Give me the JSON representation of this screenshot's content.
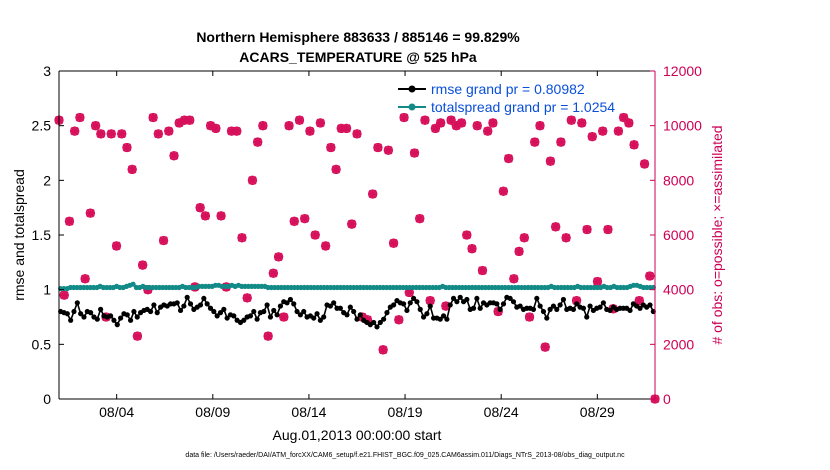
{
  "chart_data": {
    "type": "line",
    "title_line1": "Northern Hemisphere 883633 / 885146 = 99.829%",
    "title_line2": "ACARS_TEMPERATURE @ 525 hPa",
    "xlabel": "Aug.01,2013 00:00:00 start",
    "ylabel_left": "rmse and totalspread",
    "ylabel_right": "# of obs: o=possible; ×=assimilated",
    "footnote": "data file: /Users/raeder/DAI/ATM_forcXX/CAM6_setup/f.e21.FHIST_BGC.f09_025.CAM6assim.011/Diags_NTrS_2013-08/obs_diag_output.nc",
    "xlim": [
      0,
      31
    ],
    "ylim_left": [
      0,
      3
    ],
    "ylim_right": [
      0,
      12000
    ],
    "x_ticks": [
      3,
      8,
      13,
      18,
      23,
      28
    ],
    "x_tick_labels": [
      "08/04",
      "08/09",
      "08/14",
      "08/19",
      "08/24",
      "08/29"
    ],
    "y_ticks_left": [
      0,
      0.5,
      1,
      1.5,
      2,
      2.5,
      3
    ],
    "y_tick_labels_left": [
      "0",
      "0.5",
      "1",
      "1.5",
      "2",
      "2.5",
      "3"
    ],
    "y_ticks_right": [
      0,
      2000,
      4000,
      6000,
      8000,
      10000,
      12000
    ],
    "y_tick_labels_right": [
      "0",
      "2000",
      "4000",
      "6000",
      "8000",
      "10000",
      "12000"
    ],
    "colors": {
      "rmse": "#000000",
      "spread": "#128a87",
      "obs": "#d6105a",
      "legend_text": "#0a4fd8",
      "right_axis": "#cc0055"
    },
    "legend": {
      "placement": "top-right",
      "entries": [
        "rmse grand pr = 0.80982",
        "totalspread grand pr = 1.0254"
      ]
    },
    "series": [
      {
        "name": "rmse",
        "values": [
          0.8,
          0.79,
          0.78,
          0.72,
          0.8,
          0.88,
          0.78,
          0.75,
          0.8,
          0.79,
          0.75,
          0.73,
          0.82,
          0.76,
          0.75,
          0.76,
          0.72,
          0.68,
          0.74,
          0.78,
          0.77,
          0.72,
          0.8,
          0.75,
          0.79,
          0.81,
          0.82,
          0.8,
          0.86,
          0.79,
          0.84,
          0.86,
          0.85,
          0.87,
          0.87,
          0.88,
          0.81,
          0.85,
          0.93,
          0.87,
          0.82,
          0.84,
          0.86,
          0.92,
          0.87,
          0.83,
          0.8,
          0.76,
          0.79,
          0.82,
          0.74,
          0.77,
          0.76,
          0.72,
          0.7,
          0.72,
          0.75,
          0.76,
          0.8,
          0.73,
          0.79,
          0.8,
          0.86,
          0.75,
          0.81,
          0.77,
          0.85,
          0.89,
          0.88,
          0.91,
          0.87,
          0.8,
          0.77,
          0.8,
          0.75,
          0.76,
          0.74,
          0.78,
          0.72,
          0.75,
          0.86,
          0.85,
          0.88,
          0.83,
          0.83,
          0.79,
          0.77,
          0.84,
          0.8,
          0.73,
          0.77,
          0.72,
          0.7,
          0.68,
          0.7,
          0.66,
          0.7,
          0.73,
          0.79,
          0.84,
          0.86,
          0.9,
          0.88,
          0.87,
          0.81,
          0.88,
          0.92,
          0.89,
          0.82,
          0.75,
          0.78,
          0.85,
          0.74,
          0.74,
          0.73,
          0.76,
          0.73,
          0.86,
          0.92,
          0.89,
          0.93,
          0.89,
          0.91,
          0.82,
          0.83,
          0.92,
          0.83,
          0.88,
          0.86,
          0.88,
          0.88,
          0.87,
          0.82,
          0.87,
          0.93,
          0.92,
          0.89,
          0.84,
          0.85,
          0.82,
          0.83,
          0.83,
          0.82,
          0.92,
          0.85,
          0.8,
          0.74,
          0.82,
          0.85,
          0.82,
          0.86,
          0.91,
          0.82,
          0.83,
          0.82,
          0.87,
          0.84,
          0.83,
          0.75,
          0.85,
          0.81,
          0.83,
          0.84,
          0.88,
          0.82,
          0.81,
          0.84,
          0.82,
          0.83,
          0.83,
          0.83,
          0.81,
          0.87,
          0.85,
          0.83,
          0.86,
          0.84,
          0.86,
          0.8
        ]
      },
      {
        "name": "totalspread",
        "values": [
          1.01,
          1.01,
          1.01,
          1.02,
          1.02,
          1.02,
          1.02,
          1.02,
          1.02,
          1.02,
          1.02,
          1.02,
          1.03,
          1.02,
          1.02,
          1.02,
          1.02,
          1.03,
          1.02,
          1.02,
          1.03,
          1.04,
          1.05,
          1.02,
          1.02,
          1.03,
          1.02,
          1.02,
          1.02,
          1.02,
          1.02,
          1.02,
          1.02,
          1.02,
          1.02,
          1.02,
          1.02,
          1.03,
          1.02,
          1.02,
          1.02,
          1.02,
          1.03,
          1.03,
          1.03,
          1.03,
          1.03,
          1.04,
          1.04,
          1.03,
          1.03,
          1.03,
          1.04,
          1.03,
          1.04,
          1.03,
          1.03,
          1.03,
          1.03,
          1.03,
          1.03,
          1.03,
          1.03,
          1.02,
          1.02,
          1.02,
          1.02,
          1.02,
          1.02,
          1.02,
          1.02,
          1.02,
          1.02,
          1.02,
          1.02,
          1.02,
          1.02,
          1.02,
          1.02,
          1.02,
          1.02,
          1.02,
          1.02,
          1.02,
          1.02,
          1.02,
          1.02,
          1.02,
          1.02,
          1.02,
          1.02,
          1.02,
          1.02,
          1.02,
          1.02,
          1.02,
          1.02,
          1.02,
          1.02,
          1.02,
          1.02,
          1.02,
          1.02,
          1.02,
          1.02,
          1.02,
          1.02,
          1.02,
          1.02,
          1.02,
          1.02,
          1.02,
          1.02,
          1.02,
          1.02,
          1.02,
          1.03,
          1.02,
          1.02,
          1.02,
          1.02,
          1.02,
          1.02,
          1.02,
          1.02,
          1.02,
          1.02,
          1.02,
          1.02,
          1.02,
          1.02,
          1.02,
          1.02,
          1.02,
          1.02,
          1.02,
          1.02,
          1.02,
          1.02,
          1.02,
          1.02,
          1.02,
          1.02,
          1.02,
          1.02,
          1.02,
          1.02,
          1.02,
          1.02,
          1.03,
          1.02,
          1.02,
          1.02,
          1.02,
          1.02,
          1.02,
          1.02,
          1.03,
          1.02,
          1.02,
          1.02,
          1.02,
          1.02,
          1.02,
          1.02,
          1.03,
          1.02,
          1.02,
          1.03,
          1.02,
          1.02,
          1.02,
          1.02,
          1.03,
          1.04,
          1.04,
          1.03,
          1.02,
          1.02,
          1.02,
          1.02
        ]
      },
      {
        "name": "obs_assimilated",
        "values": [
          10200,
          3800,
          6500,
          9800,
          10300,
          4400,
          6800,
          10000,
          9700,
          3000,
          9700,
          5600,
          9700,
          9200,
          8400,
          2300,
          4900,
          4000,
          10300,
          9700,
          5800,
          9800,
          8900,
          10100,
          10200,
          10200,
          4100,
          7000,
          6700,
          10000,
          9900,
          6700,
          4100,
          9800,
          9800,
          5900,
          3700,
          8000,
          9400,
          10000,
          2300,
          4600,
          5200,
          3000,
          10000,
          6500,
          10200,
          6600,
          9800,
          6000,
          10100,
          5600,
          9200,
          8400,
          9900,
          9900,
          6400,
          9700,
          3000,
          2900,
          7500,
          9200,
          1800,
          9100,
          5700,
          2900,
          10300,
          3900,
          9000,
          6600,
          10200,
          3600,
          9900,
          10100,
          3400,
          10200,
          10000,
          10100,
          6000,
          5500,
          10000,
          4700,
          9800,
          10100,
          3200,
          7600,
          8800,
          4400,
          5400,
          5900,
          3000,
          9400,
          10000,
          1900,
          8700,
          6300,
          9400,
          5900,
          10200,
          3600,
          10100,
          6200,
          9600,
          4300,
          9800,
          6200,
          3300,
          9800,
          10300,
          10100,
          9300,
          3600,
          8600,
          4500,
          0
        ]
      },
      {
        "name": "obs_possible",
        "values": [
          10200,
          3800,
          6500,
          9800,
          10300,
          4400,
          6800,
          10000,
          9700,
          3000,
          9700,
          5600,
          9700,
          9200,
          8400,
          2300,
          4900,
          4000,
          10300,
          9700,
          5800,
          9800,
          8900,
          10100,
          10200,
          10200,
          4100,
          7000,
          6700,
          10000,
          9900,
          6700,
          4100,
          9800,
          9800,
          5900,
          3700,
          8000,
          9400,
          10000,
          2300,
          4600,
          5200,
          3000,
          10000,
          6500,
          10200,
          6600,
          9800,
          6000,
          10100,
          5600,
          9200,
          8400,
          9900,
          9900,
          6400,
          9700,
          3000,
          2900,
          7500,
          9200,
          1800,
          9100,
          5700,
          2900,
          10300,
          3900,
          9000,
          6600,
          10200,
          3600,
          9900,
          10100,
          3400,
          10200,
          10000,
          10100,
          6000,
          5500,
          10000,
          4700,
          9800,
          10100,
          3200,
          7600,
          8800,
          4400,
          5400,
          5900,
          3000,
          9400,
          10000,
          1900,
          8700,
          6300,
          9400,
          5900,
          10200,
          3600,
          10100,
          6200,
          9600,
          4300,
          9800,
          6200,
          3300,
          9800,
          10300,
          10100,
          9300,
          3600,
          8600,
          4500,
          0
        ]
      }
    ]
  }
}
